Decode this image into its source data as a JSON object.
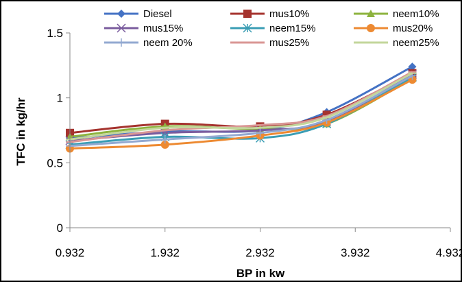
{
  "chart_data": {
    "type": "line",
    "title": "",
    "xlabel": "BP in kw",
    "ylabel": "TFC in kg/hr",
    "x_ticks": [
      "0.932",
      "1.932",
      "2.932",
      "3.932",
      "4.932"
    ],
    "y_ticks": [
      "0",
      "0.5",
      "1",
      "1.5"
    ],
    "xlim": [
      0.932,
      4.932
    ],
    "ylim": [
      0,
      1.5
    ],
    "grid": false,
    "legend_position": "top",
    "series": [
      {
        "name": "Diesel",
        "color": "#4472C4",
        "marker": "diamond",
        "x": [
          0.932,
          1.932,
          2.932,
          3.632,
          4.532
        ],
        "values": [
          0.69,
          0.74,
          0.75,
          0.89,
          1.24
        ]
      },
      {
        "name": "mus10%",
        "color": "#A5332E",
        "marker": "square",
        "x": [
          0.932,
          1.932,
          2.932,
          3.632,
          4.532
        ],
        "values": [
          0.73,
          0.8,
          0.78,
          0.87,
          1.19
        ]
      },
      {
        "name": "neem10%",
        "color": "#8DB33E",
        "marker": "triangle",
        "x": [
          0.932,
          1.932,
          2.932,
          3.632,
          4.532
        ],
        "values": [
          0.7,
          0.78,
          0.76,
          0.8,
          1.15
        ]
      },
      {
        "name": "mus15%",
        "color": "#7A5C9E",
        "marker": "x",
        "x": [
          0.932,
          1.932,
          2.932,
          3.632,
          4.532
        ],
        "values": [
          0.67,
          0.73,
          0.75,
          0.82,
          1.18
        ]
      },
      {
        "name": "neem15%",
        "color": "#3A9DB4",
        "marker": "star",
        "x": [
          0.932,
          1.932,
          2.932,
          3.632,
          4.532
        ],
        "values": [
          0.64,
          0.7,
          0.69,
          0.8,
          1.16
        ]
      },
      {
        "name": "mus20%",
        "color": "#ED8A32",
        "marker": "circle",
        "x": [
          0.932,
          1.932,
          2.932,
          3.632,
          4.532
        ],
        "values": [
          0.61,
          0.64,
          0.71,
          0.81,
          1.14
        ]
      },
      {
        "name": "neem 20%",
        "color": "#93A9D1",
        "marker": "plus",
        "x": [
          0.932,
          1.932,
          2.932,
          3.632,
          4.532
        ],
        "values": [
          0.63,
          0.68,
          0.73,
          0.83,
          1.17
        ]
      },
      {
        "name": "mus25%",
        "color": "#D99694",
        "marker": "dash",
        "x": [
          0.932,
          1.932,
          2.932,
          3.632,
          4.532
        ],
        "values": [
          0.66,
          0.75,
          0.79,
          0.86,
          1.2
        ]
      },
      {
        "name": "neem25%",
        "color": "#C3D69B",
        "marker": "dash",
        "x": [
          0.932,
          1.932,
          2.932,
          3.632,
          4.532
        ],
        "values": [
          0.68,
          0.77,
          0.77,
          0.85,
          1.19
        ]
      }
    ]
  }
}
